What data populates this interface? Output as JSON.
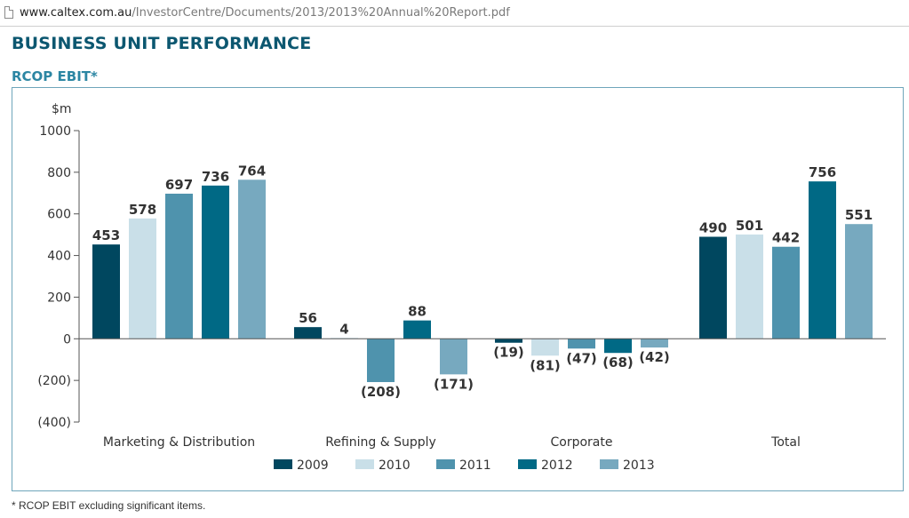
{
  "browser": {
    "url_host": "www.caltex.com.au",
    "url_path": "/InvestorCentre/Documents/2013/2013%20Annual%20Report.pdf"
  },
  "page": {
    "section_title": "BUSINESS UNIT PERFORMANCE",
    "chart_subtitle": "RCOP EBIT*",
    "footnote": "*  RCOP EBIT excluding significant items."
  },
  "chart_data": {
    "type": "bar",
    "title": "RCOP EBIT*",
    "ylabel": "$m",
    "xlabel": "",
    "ylim": [
      -400,
      1000
    ],
    "yticks": [
      1000,
      800,
      600,
      400,
      200,
      0,
      -200,
      -400
    ],
    "ytick_labels": [
      "1000",
      "800",
      "600",
      "400",
      "200",
      "0",
      "(200)",
      "(400)"
    ],
    "categories": [
      "Marketing & Distribution",
      "Refining & Supply",
      "Corporate",
      "Total"
    ],
    "series": [
      {
        "name": "2009",
        "color": "#00475f",
        "values": [
          453,
          56,
          -19,
          490
        ],
        "labels": [
          "453",
          "56",
          "(19)",
          "490"
        ]
      },
      {
        "name": "2010",
        "color": "#c9dfe8",
        "values": [
          578,
          4,
          -81,
          501
        ],
        "labels": [
          "578",
          "4",
          "(81)",
          "501"
        ]
      },
      {
        "name": "2011",
        "color": "#4f93ad",
        "values": [
          697,
          -208,
          -47,
          442
        ],
        "labels": [
          "697",
          "(208)",
          "(47)",
          "442"
        ]
      },
      {
        "name": "2012",
        "color": "#006985",
        "values": [
          736,
          88,
          -68,
          756
        ],
        "labels": [
          "736",
          "88",
          "(68)",
          "756"
        ]
      },
      {
        "name": "2013",
        "color": "#77a9bf",
        "values": [
          764,
          -171,
          -42,
          551
        ],
        "labels": [
          "764",
          "(171)",
          "(42)",
          "551"
        ]
      }
    ],
    "grid": false,
    "legend_position": "bottom-center"
  }
}
